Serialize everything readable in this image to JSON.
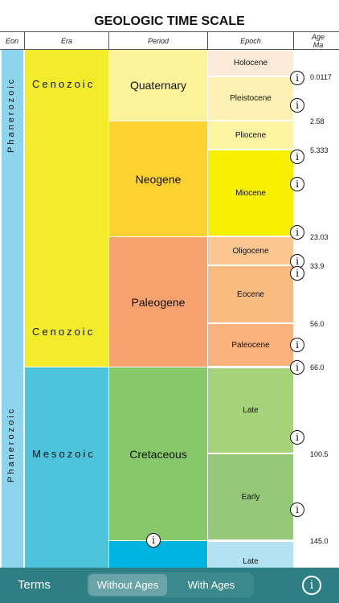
{
  "title": "GEOLOGIC TIME SCALE",
  "headers": {
    "eon": "Eon",
    "era": "Era",
    "period": "Period",
    "epoch": "Epoch",
    "age_line1": "Age",
    "age_line2": "Ma"
  },
  "eons": [
    {
      "label": "Phanerozoic",
      "color": "#8dd4ec"
    }
  ],
  "eras": [
    {
      "label": "Cenozoic",
      "color": "#f3ec2a"
    },
    {
      "label": "Mesozoic",
      "color": "#4dc3dc"
    }
  ],
  "periods": [
    {
      "label": "Quaternary",
      "color": "#fdf39b"
    },
    {
      "label": "Neogene",
      "color": "#fdd12f"
    },
    {
      "label": "Paleogene",
      "color": "#f7a26f"
    },
    {
      "label": "Cretaceous",
      "color": "#87c96a"
    },
    {
      "label": "",
      "color": "#00b4e0"
    }
  ],
  "epochs": [
    {
      "label": "Holocene",
      "color": "#fdebd9"
    },
    {
      "label": "Pleistocene",
      "color": "#fef1b3"
    },
    {
      "label": "Pliocene",
      "color": "#fdf5a2"
    },
    {
      "label": "Miocene",
      "color": "#f9f000"
    },
    {
      "label": "Oligocene",
      "color": "#fcc691"
    },
    {
      "label": "Eocene",
      "color": "#f9bb7f"
    },
    {
      "label": "Paleocene",
      "color": "#fbb27c"
    },
    {
      "label": "Late",
      "color": "#a6d27a"
    },
    {
      "label": "Early",
      "color": "#95c979"
    },
    {
      "label": "Late",
      "color": "#b3e3f3"
    }
  ],
  "ages": [
    "0.0117",
    "2.58",
    "5.333",
    "23.03",
    "33.9",
    "56.0",
    "66.0",
    "100.5",
    "145.0"
  ],
  "info_symbol": "i",
  "bottom_bar": {
    "terms": "Terms",
    "without_ages": "Without Ages",
    "with_ages": "With Ages",
    "info_symbol": "i"
  }
}
